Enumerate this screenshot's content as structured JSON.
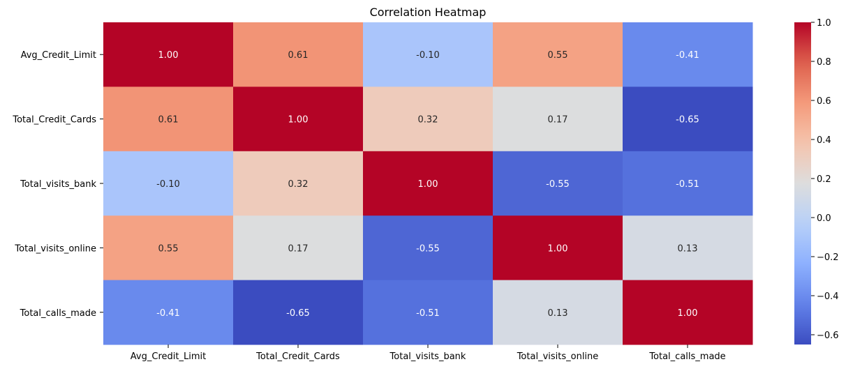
{
  "chart_data": {
    "type": "heatmap",
    "title": "Correlation Heatmap",
    "xlabel": "",
    "ylabel": "",
    "rows": [
      "Avg_Credit_Limit",
      "Total_Credit_Cards",
      "Total_visits_bank",
      "Total_visits_online",
      "Total_calls_made"
    ],
    "columns": [
      "Avg_Credit_Limit",
      "Total_Credit_Cards",
      "Total_visits_bank",
      "Total_visits_online",
      "Total_calls_made"
    ],
    "values": [
      [
        1.0,
        0.61,
        -0.1,
        0.55,
        -0.41
      ],
      [
        0.61,
        1.0,
        0.32,
        0.17,
        -0.65
      ],
      [
        -0.1,
        0.32,
        1.0,
        -0.55,
        -0.51
      ],
      [
        0.55,
        0.17,
        -0.55,
        1.0,
        0.13
      ],
      [
        -0.41,
        -0.65,
        -0.51,
        0.13,
        1.0
      ]
    ],
    "annotation_format": "0.00",
    "colormap": "coolwarm",
    "vmin": -0.65,
    "vmax": 1.0,
    "colorbar": {
      "ticks": [
        1.0,
        0.8,
        0.6,
        0.4,
        0.2,
        0.0,
        -0.2,
        -0.4,
        -0.6
      ],
      "tick_labels": [
        "1.0",
        "0.8",
        "0.6",
        "0.4",
        "0.2",
        "0.0",
        "−0.2",
        "−0.4",
        "−0.6"
      ]
    },
    "grid": false,
    "legend": "colorbar-right"
  }
}
